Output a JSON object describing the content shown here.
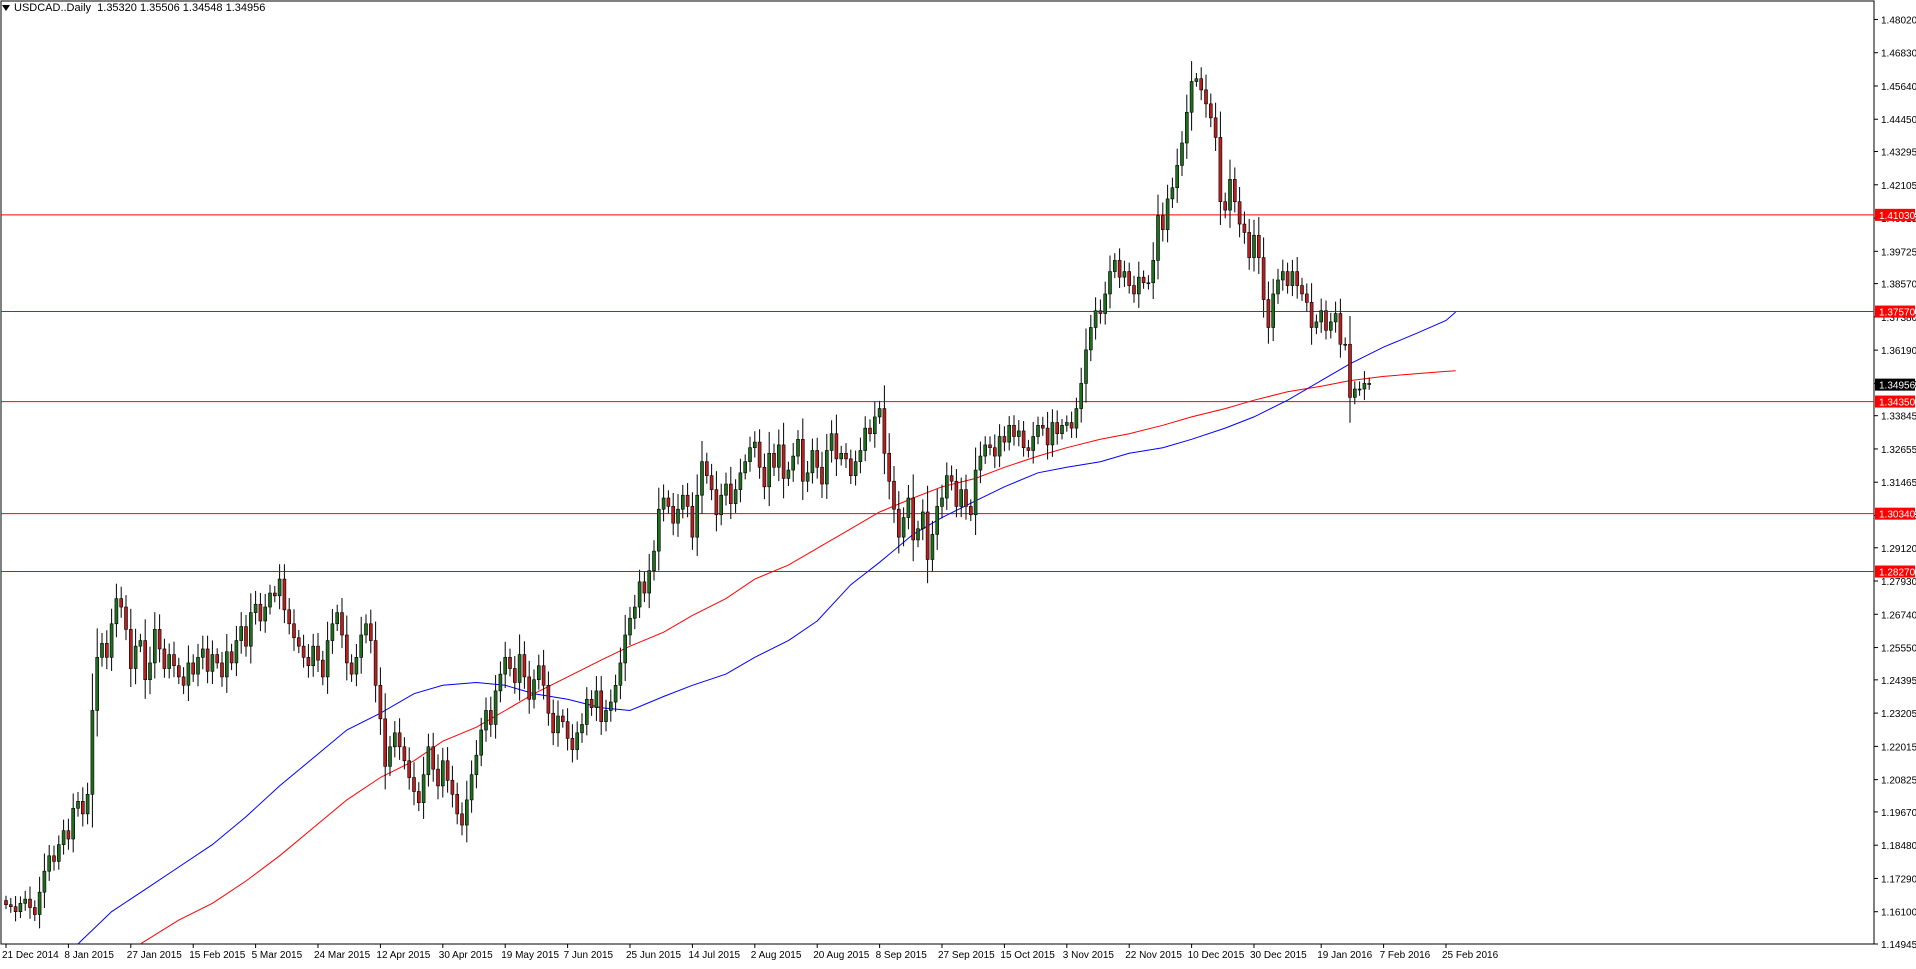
{
  "header": {
    "symbol": "USDCAD..Daily",
    "ohlc": "1.35320 1.35506 1.34548 1.34956"
  },
  "colors": {
    "background": "#ffffff",
    "axis": "#000000",
    "bull_fill": "#1d6e1d",
    "bear_fill": "#ba1f1f",
    "wick": "#000000",
    "ma_fast": "#0000ff",
    "ma_slow": "#ff0000",
    "levels": "#ff0000",
    "price_tag": "#000000",
    "level_tag": "#ff0000"
  },
  "chart_data": {
    "type": "candlestick",
    "symbol": "USDCAD",
    "timeframe": "Daily",
    "ylim": [
      1.14945,
      1.4868
    ],
    "y_ticks": [
      "1.48020",
      "1.46830",
      "1.45640",
      "1.44450",
      "1.43295",
      "1.42105",
      "1.40915",
      "1.39725",
      "1.38570",
      "1.37380",
      "1.36190",
      "1.35000",
      "1.33845",
      "1.32655",
      "1.31465",
      "1.30275",
      "1.29120",
      "1.27930",
      "1.26740",
      "1.25550",
      "1.24395",
      "1.23205",
      "1.22015",
      "1.20825",
      "1.19670",
      "1.18480",
      "1.17290",
      "1.16100",
      "1.14945"
    ],
    "x_labels": [
      "21 Dec 2014",
      "8 Jan 2015",
      "27 Jan 2015",
      "15 Feb 2015",
      "5 Mar 2015",
      "24 Mar 2015",
      "12 Apr 2015",
      "30 Apr 2015",
      "19 May 2015",
      "7 Jun 2015",
      "25 Jun 2015",
      "14 Jul 2015",
      "2 Aug 2015",
      "20 Aug 2015",
      "8 Sep 2015",
      "27 Sep 2015",
      "15 Oct 2015",
      "3 Nov 2015",
      "22 Nov 2015",
      "10 Dec 2015",
      "30 Dec 2015",
      "19 Jan 2016",
      "7 Feb 2016",
      "25 Feb 2016"
    ],
    "x_label_index": [
      0,
      13,
      26,
      39,
      52,
      65,
      78,
      91,
      104,
      117,
      130,
      143,
      156,
      169,
      182,
      195,
      208,
      221,
      234,
      247,
      260,
      274,
      287,
      300
    ],
    "horizontal_levels": [
      "1.41030",
      "1.37570",
      "1.34350",
      "1.30340",
      "1.28270"
    ],
    "current_price": "1.34956",
    "closes": [
      1.1635,
      1.1628,
      1.161,
      1.164,
      1.1655,
      1.1625,
      1.16,
      1.168,
      1.1755,
      1.181,
      1.179,
      1.185,
      1.19,
      1.187,
      1.198,
      1.2005,
      1.196,
      1.203,
      1.233,
      1.252,
      1.257,
      1.252,
      1.264,
      1.273,
      1.27,
      1.262,
      1.248,
      1.256,
      1.258,
      1.244,
      1.25,
      1.262,
      1.255,
      1.248,
      1.253,
      1.249,
      1.245,
      1.242,
      1.25,
      1.246,
      1.252,
      1.255,
      1.247,
      1.253,
      1.25,
      1.245,
      1.254,
      1.25,
      1.258,
      1.263,
      1.256,
      1.268,
      1.271,
      1.265,
      1.27,
      1.275,
      1.274,
      1.28,
      1.269,
      1.264,
      1.259,
      1.256,
      1.252,
      1.249,
      1.256,
      1.251,
      1.245,
      1.258,
      1.264,
      1.268,
      1.26,
      1.25,
      1.246,
      1.252,
      1.26,
      1.264,
      1.258,
      1.242,
      1.23,
      1.213,
      1.22,
      1.225,
      1.22,
      1.215,
      1.209,
      1.204,
      1.2,
      1.21,
      1.22,
      1.212,
      1.206,
      1.215,
      1.208,
      1.203,
      1.196,
      1.192,
      1.201,
      1.21,
      1.217,
      1.226,
      1.233,
      1.228,
      1.24,
      1.246,
      1.252,
      1.248,
      1.243,
      1.253,
      1.245,
      1.237,
      1.244,
      1.249,
      1.242,
      1.232,
      1.225,
      1.231,
      1.229,
      1.223,
      1.219,
      1.225,
      1.228,
      1.237,
      1.234,
      1.24,
      1.229,
      1.233,
      1.236,
      1.242,
      1.25,
      1.26,
      1.266,
      1.27,
      1.279,
      1.275,
      1.283,
      1.29,
      1.305,
      1.309,
      1.306,
      1.3,
      1.305,
      1.31,
      1.306,
      1.295,
      1.31,
      1.322,
      1.317,
      1.312,
      1.303,
      1.31,
      1.314,
      1.307,
      1.312,
      1.318,
      1.322,
      1.327,
      1.329,
      1.32,
      1.313,
      1.325,
      1.32,
      1.328,
      1.316,
      1.319,
      1.324,
      1.33,
      1.315,
      1.318,
      1.326,
      1.32,
      1.314,
      1.326,
      1.332,
      1.323,
      1.325,
      1.323,
      1.317,
      1.322,
      1.326,
      1.334,
      1.332,
      1.338,
      1.341,
      1.325,
      1.315,
      1.305,
      1.295,
      1.302,
      1.309,
      1.294,
      1.298,
      1.304,
      1.287,
      1.296,
      1.306,
      1.309,
      1.317,
      1.315,
      1.306,
      1.312,
      1.306,
      1.303,
      1.319,
      1.324,
      1.328,
      1.327,
      1.324,
      1.331,
      1.329,
      1.335,
      1.331,
      1.333,
      1.327,
      1.326,
      1.331,
      1.335,
      1.334,
      1.328,
      1.336,
      1.332,
      1.335,
      1.336,
      1.334,
      1.341,
      1.35,
      1.362,
      1.37,
      1.376,
      1.375,
      1.382,
      1.39,
      1.394,
      1.388,
      1.39,
      1.385,
      1.382,
      1.388,
      1.386,
      1.386,
      1.394,
      1.41,
      1.405,
      1.416,
      1.42,
      1.428,
      1.436,
      1.447,
      1.458,
      1.459,
      1.455,
      1.45,
      1.445,
      1.438,
      1.415,
      1.412,
      1.423,
      1.415,
      1.407,
      1.404,
      1.395,
      1.403,
      1.395,
      1.38,
      1.37,
      1.382,
      1.387,
      1.39,
      1.385,
      1.39,
      1.385,
      1.382,
      1.379,
      1.37,
      1.372,
      1.376,
      1.369,
      1.372,
      1.375,
      1.364,
      1.364,
      1.345,
      1.348,
      1.348,
      1.35,
      1.3496
    ]
  },
  "overlays": {
    "ma_fast_start_index": 15,
    "ma_fast_points": [
      [
        15,
        1.1495
      ],
      [
        22,
        1.161
      ],
      [
        29,
        1.169
      ],
      [
        36,
        1.177
      ],
      [
        43,
        1.185
      ],
      [
        50,
        1.195
      ],
      [
        57,
        1.206
      ],
      [
        64,
        1.216
      ],
      [
        71,
        1.226
      ],
      [
        78,
        1.232
      ],
      [
        85,
        1.239
      ],
      [
        91,
        1.242
      ],
      [
        98,
        1.243
      ],
      [
        104,
        1.242
      ],
      [
        110,
        1.239
      ],
      [
        117,
        1.237
      ],
      [
        124,
        1.234
      ],
      [
        130,
        1.233
      ],
      [
        137,
        1.238
      ],
      [
        143,
        1.242
      ],
      [
        150,
        1.246
      ],
      [
        156,
        1.252
      ],
      [
        163,
        1.258
      ],
      [
        169,
        1.265
      ],
      [
        176,
        1.278
      ],
      [
        182,
        1.286
      ],
      [
        189,
        1.296
      ],
      [
        195,
        1.302
      ],
      [
        202,
        1.308
      ],
      [
        208,
        1.313
      ],
      [
        215,
        1.318
      ],
      [
        221,
        1.32
      ],
      [
        228,
        1.322
      ],
      [
        234,
        1.325
      ],
      [
        241,
        1.327
      ],
      [
        247,
        1.33
      ],
      [
        254,
        1.334
      ],
      [
        260,
        1.338
      ],
      [
        267,
        1.344
      ],
      [
        274,
        1.351
      ],
      [
        280,
        1.357
      ],
      [
        287,
        1.363
      ],
      [
        294,
        1.368
      ],
      [
        300,
        1.3725
      ],
      [
        302,
        1.3755
      ]
    ],
    "ma_slow_points": [
      [
        28,
        1.1495
      ],
      [
        36,
        1.158
      ],
      [
        43,
        1.164
      ],
      [
        50,
        1.172
      ],
      [
        57,
        1.181
      ],
      [
        64,
        1.191
      ],
      [
        71,
        1.201
      ],
      [
        78,
        1.209
      ],
      [
        85,
        1.215
      ],
      [
        91,
        1.222
      ],
      [
        98,
        1.227
      ],
      [
        104,
        1.233
      ],
      [
        110,
        1.239
      ],
      [
        117,
        1.245
      ],
      [
        124,
        1.251
      ],
      [
        130,
        1.256
      ],
      [
        137,
        1.261
      ],
      [
        143,
        1.267
      ],
      [
        150,
        1.273
      ],
      [
        156,
        1.28
      ],
      [
        163,
        1.285
      ],
      [
        169,
        1.291
      ],
      [
        176,
        1.298
      ],
      [
        182,
        1.304
      ],
      [
        189,
        1.309
      ],
      [
        195,
        1.313
      ],
      [
        202,
        1.316
      ],
      [
        208,
        1.32
      ],
      [
        215,
        1.324
      ],
      [
        221,
        1.327
      ],
      [
        228,
        1.33
      ],
      [
        234,
        1.332
      ],
      [
        241,
        1.335
      ],
      [
        247,
        1.338
      ],
      [
        254,
        1.341
      ],
      [
        260,
        1.344
      ],
      [
        267,
        1.347
      ],
      [
        274,
        1.349
      ],
      [
        280,
        1.351
      ],
      [
        287,
        1.3525
      ],
      [
        294,
        1.3535
      ],
      [
        300,
        1.3543
      ],
      [
        302,
        1.3545
      ]
    ]
  }
}
